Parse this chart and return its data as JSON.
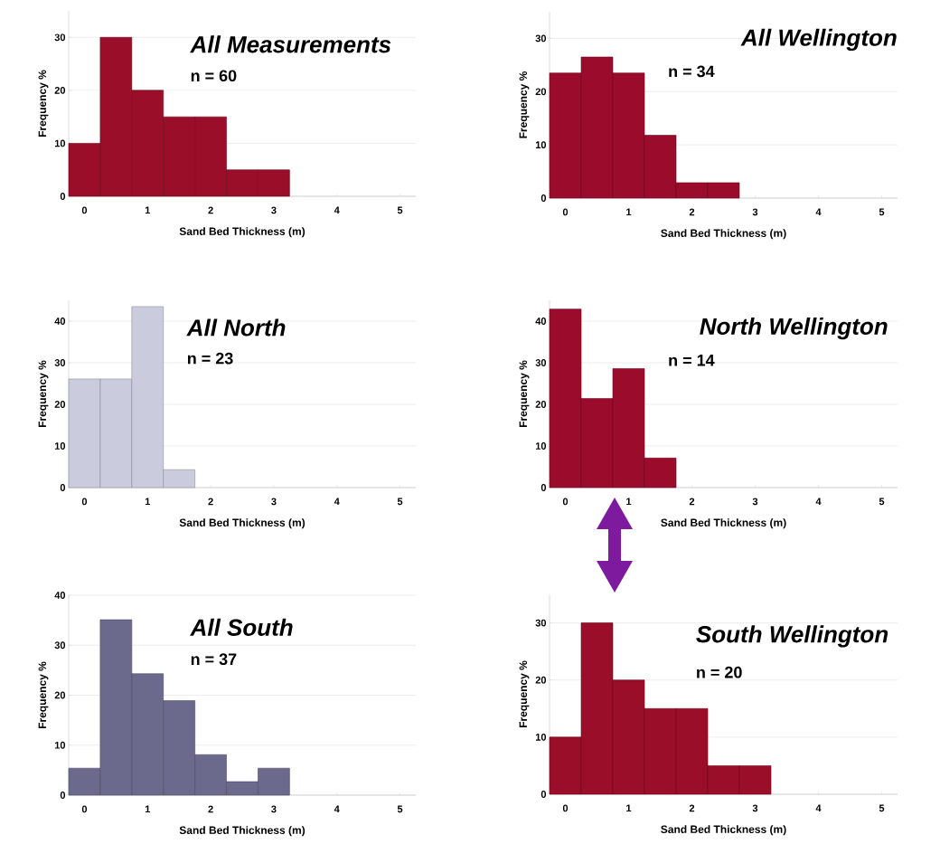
{
  "chart_data": [
    {
      "type": "histogram",
      "title": "All Measurements",
      "subtitle": "n = 60",
      "xlabel": "Sand Bed Thickness (m)",
      "ylabel": "Frequency %",
      "bins": [
        -0.25,
        0.25,
        0.75,
        1.25,
        1.75,
        2.25,
        2.75,
        3.25
      ],
      "values": [
        10,
        30,
        20,
        15,
        15,
        5,
        5
      ],
      "color": "#9a0e2a",
      "xlim": [
        -0.25,
        5.25
      ],
      "ylim": [
        0,
        35
      ],
      "xticks": [
        0,
        1,
        2,
        3,
        4,
        5
      ],
      "yticks": [
        0,
        10,
        20,
        30
      ],
      "grid": "y"
    },
    {
      "type": "histogram",
      "title": "All Wellington",
      "subtitle": "n = 34",
      "xlabel": "Sand Bed Thickness (m)",
      "ylabel": "Frequency %",
      "bins": [
        -0.25,
        0.25,
        0.75,
        1.25,
        1.75,
        2.25,
        2.75
      ],
      "values": [
        23.5,
        26.5,
        23.5,
        11.8,
        2.9,
        2.9
      ],
      "color": "#9b0c2c",
      "xlim": [
        -0.25,
        5.25
      ],
      "ylim": [
        0,
        35
      ],
      "xticks": [
        0,
        1,
        2,
        3,
        4,
        5
      ],
      "yticks": [
        0,
        10,
        20,
        30
      ],
      "grid": "y"
    },
    {
      "type": "histogram",
      "title": "All North",
      "subtitle": "n = 23",
      "xlabel": "Sand Bed Thickness (m)",
      "ylabel": "Frequency %",
      "bins": [
        -0.25,
        0.25,
        0.75,
        1.25,
        1.75
      ],
      "values": [
        26.1,
        26.1,
        43.5,
        4.3
      ],
      "color": "#cacbdc",
      "xlim": [
        -0.25,
        5.25
      ],
      "ylim": [
        0,
        45
      ],
      "xticks": [
        0,
        1,
        2,
        3,
        4,
        5
      ],
      "yticks": [
        0,
        10,
        20,
        30,
        40
      ],
      "grid": "y"
    },
    {
      "type": "histogram",
      "title": "North Wellington",
      "subtitle": "n = 14",
      "xlabel": "Sand Bed Thickness (m)",
      "ylabel": "Frequency %",
      "bins": [
        -0.25,
        0.25,
        0.75,
        1.25,
        1.75
      ],
      "values": [
        42.9,
        21.4,
        28.6,
        7.1
      ],
      "color": "#9b0c2c",
      "xlim": [
        -0.25,
        5.25
      ],
      "ylim": [
        0,
        45
      ],
      "xticks": [
        0,
        1,
        2,
        3,
        4,
        5
      ],
      "yticks": [
        0,
        10,
        20,
        30,
        40
      ],
      "grid": "y"
    },
    {
      "type": "histogram",
      "title": "All South",
      "subtitle": "n = 37",
      "xlabel": "Sand Bed Thickness (m)",
      "ylabel": "Frequency %",
      "bins": [
        -0.25,
        0.25,
        0.75,
        1.25,
        1.75,
        2.25,
        2.75,
        3.25
      ],
      "values": [
        5.4,
        35.1,
        24.3,
        18.9,
        8.1,
        2.7,
        5.4
      ],
      "color": "#6b6a8c",
      "xlim": [
        -0.25,
        5.25
      ],
      "ylim": [
        0,
        40
      ],
      "xticks": [
        0,
        1,
        2,
        3,
        4,
        5
      ],
      "yticks": [
        0,
        10,
        20,
        30,
        40
      ],
      "grid": "y"
    },
    {
      "type": "histogram",
      "title": "South Wellington",
      "subtitle": "n = 20",
      "xlabel": "Sand Bed Thickness (m)",
      "ylabel": "Frequency %",
      "bins": [
        -0.25,
        0.25,
        0.75,
        1.25,
        1.75,
        2.25,
        2.75,
        3.25
      ],
      "values": [
        10,
        30,
        20,
        15,
        15,
        5,
        5
      ],
      "color": "#9a0e2a",
      "xlim": [
        -0.25,
        5.25
      ],
      "ylim": [
        0,
        35
      ],
      "xticks": [
        0,
        1,
        2,
        3,
        4,
        5
      ],
      "yticks": [
        0,
        10,
        20,
        30
      ],
      "grid": "y"
    }
  ]
}
